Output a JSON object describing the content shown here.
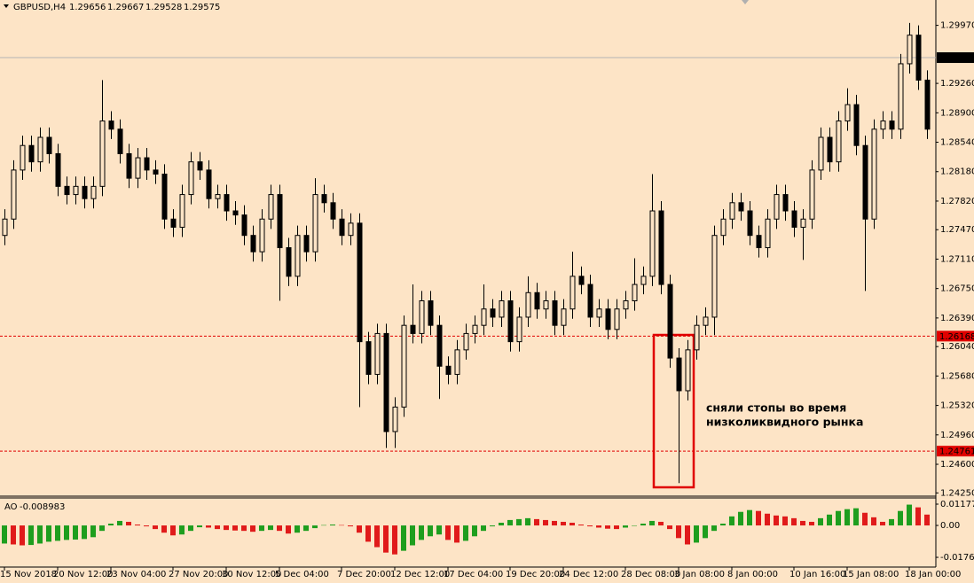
{
  "chart_data": {
    "type": "candlestick",
    "symbol": "GBPUSD,H4",
    "quote": [
      1.29656,
      1.29667,
      1.29528,
      1.29575
    ],
    "background": "#fde4c6",
    "up_fill": "#fde4c6",
    "down_fill": "#000000",
    "grid": false,
    "ylim": [
      1.2421,
      1.3028
    ],
    "yticks": [
      {
        "value": 1.2997,
        "label": "1.29970"
      },
      {
        "value": 1.2926,
        "label": "1.29260"
      },
      {
        "value": 1.289,
        "label": "1.28900"
      },
      {
        "value": 1.2854,
        "label": "1.28540"
      },
      {
        "value": 1.2818,
        "label": "1.28180"
      },
      {
        "value": 1.2782,
        "label": "1.27820"
      },
      {
        "value": 1.2747,
        "label": "1.27470"
      },
      {
        "value": 1.2711,
        "label": "1.27110"
      },
      {
        "value": 1.2675,
        "label": "1.26750"
      },
      {
        "value": 1.2639,
        "label": "1.26390"
      },
      {
        "value": 1.2604,
        "label": "1.26040"
      },
      {
        "value": 1.2568,
        "label": "1.25680"
      },
      {
        "value": 1.2532,
        "label": "1.25320"
      },
      {
        "value": 1.2496,
        "label": "1.24960"
      },
      {
        "value": 1.246,
        "label": "1.24600"
      },
      {
        "value": 1.2425,
        "label": "1.24250"
      }
    ],
    "xlim": [
      -0.5,
      105
    ],
    "xticks": [
      {
        "value": 0,
        "label": "15 Nov 2018"
      },
      {
        "value": 6,
        "label": "20 Nov 12:00"
      },
      {
        "value": 12,
        "label": "23 Nov 04:00"
      },
      {
        "value": 19,
        "label": "27 Nov 20:00"
      },
      {
        "value": 25,
        "label": "30 Nov 12:00"
      },
      {
        "value": 31,
        "label": "5 Dec 04:00"
      },
      {
        "value": 38,
        "label": "7 Dec 20:00"
      },
      {
        "value": 44,
        "label": "12 Dec 12:00"
      },
      {
        "value": 50,
        "label": "17 Dec 04:00"
      },
      {
        "value": 57,
        "label": "19 Dec 20:00"
      },
      {
        "value": 63,
        "label": "24 Dec 12:00"
      },
      {
        "value": 70,
        "label": "28 Dec 08:00"
      },
      {
        "value": 76,
        "label": "3 Jan 08:00"
      },
      {
        "value": 82,
        "label": "8 Jan 00:00"
      },
      {
        "value": 89,
        "label": "10 Jan 16:00"
      },
      {
        "value": 95,
        "label": "15 Jan 08:00"
      },
      {
        "value": 102,
        "label": "18 Jan 00:00"
      }
    ],
    "open": [
      1.274,
      1.276,
      1.282,
      1.285,
      1.283,
      1.286,
      1.284,
      1.28,
      1.279,
      1.28,
      1.2785,
      1.28,
      1.288,
      1.287,
      1.284,
      1.281,
      1.2835,
      1.282,
      1.2815,
      1.276,
      1.275,
      1.279,
      1.283,
      1.282,
      1.2785,
      1.279,
      1.277,
      1.2765,
      1.274,
      1.272,
      1.276,
      1.279,
      1.2725,
      1.269,
      1.274,
      1.272,
      1.279,
      1.278,
      1.276,
      1.274,
      1.2755,
      1.261,
      1.257,
      1.262,
      1.25,
      1.253,
      1.263,
      1.262,
      1.266,
      1.263,
      1.258,
      1.257,
      1.26,
      1.262,
      1.263,
      1.265,
      1.264,
      1.266,
      1.261,
      1.264,
      1.267,
      1.265,
      1.266,
      1.263,
      1.265,
      1.269,
      1.268,
      1.264,
      1.265,
      1.2625,
      1.265,
      1.266,
      1.268,
      1.269,
      1.277,
      1.268,
      1.259,
      1.255,
      1.26,
      1.263,
      1.264,
      1.274,
      1.276,
      1.278,
      1.277,
      1.274,
      1.2725,
      1.276,
      1.279,
      1.277,
      1.275,
      1.276,
      1.282,
      1.286,
      1.283,
      1.288,
      1.29,
      1.285,
      1.276,
      1.287,
      1.288,
      1.287,
      1.295,
      1.2985,
      1.293
    ],
    "high": [
      1.2772,
      1.2832,
      1.2862,
      1.2862,
      1.2872,
      1.2872,
      1.2852,
      1.2812,
      1.2812,
      1.2812,
      1.2812,
      1.293,
      1.2892,
      1.2882,
      1.2852,
      1.2847,
      1.2847,
      1.2832,
      1.2827,
      1.2772,
      1.2802,
      1.2842,
      1.2842,
      1.2832,
      1.2802,
      1.2802,
      1.2782,
      1.2777,
      1.2752,
      1.2772,
      1.2802,
      1.2802,
      1.2737,
      1.2752,
      1.2752,
      1.281,
      1.2802,
      1.2792,
      1.2772,
      1.2767,
      1.2767,
      1.2622,
      1.2632,
      1.2632,
      1.2542,
      1.2642,
      1.268,
      1.2672,
      1.2672,
      1.2642,
      1.2592,
      1.2612,
      1.2632,
      1.2642,
      1.268,
      1.2662,
      1.2672,
      1.2672,
      1.2652,
      1.269,
      1.2682,
      1.2672,
      1.2672,
      1.2662,
      1.272,
      1.2702,
      1.2692,
      1.2662,
      1.2662,
      1.2662,
      1.2672,
      1.2712,
      1.2702,
      1.2815,
      1.2782,
      1.2692,
      1.2602,
      1.2612,
      1.2642,
      1.2652,
      1.2752,
      1.2772,
      1.2792,
      1.2792,
      1.2782,
      1.2752,
      1.2772,
      1.2802,
      1.2802,
      1.2782,
      1.2772,
      1.2832,
      1.2872,
      1.2872,
      1.2892,
      1.292,
      1.2912,
      1.2862,
      1.2882,
      1.2892,
      1.2892,
      1.2962,
      1.3,
      1.2997,
      1.2942
    ],
    "low": [
      1.2728,
      1.2748,
      1.2808,
      1.2818,
      1.2818,
      1.2828,
      1.2788,
      1.2778,
      1.2778,
      1.2773,
      1.2773,
      1.2788,
      1.2858,
      1.2828,
      1.2798,
      1.2798,
      1.2808,
      1.2803,
      1.2748,
      1.2738,
      1.2738,
      1.2778,
      1.2808,
      1.2773,
      1.2773,
      1.2758,
      1.2753,
      1.2728,
      1.2708,
      1.2708,
      1.2748,
      1.266,
      1.2678,
      1.2678,
      1.2708,
      1.2708,
      1.2768,
      1.2748,
      1.2728,
      1.2728,
      1.253,
      1.2558,
      1.2558,
      1.248,
      1.248,
      1.2518,
      1.2608,
      1.2608,
      1.2618,
      1.254,
      1.2558,
      1.2558,
      1.2588,
      1.2608,
      1.2618,
      1.2628,
      1.2628,
      1.2598,
      1.2598,
      1.2628,
      1.2638,
      1.2638,
      1.2618,
      1.2618,
      1.2638,
      1.2668,
      1.2628,
      1.2628,
      1.2613,
      1.2613,
      1.2638,
      1.2648,
      1.2668,
      1.2678,
      1.2668,
      1.2578,
      1.2437,
      1.2538,
      1.2588,
      1.2618,
      1.2618,
      1.2728,
      1.2748,
      1.2758,
      1.2728,
      1.2713,
      1.2713,
      1.2748,
      1.2758,
      1.2738,
      1.271,
      1.2748,
      1.2808,
      1.2818,
      1.2818,
      1.2868,
      1.2838,
      1.2672,
      1.2748,
      1.2858,
      1.2858,
      1.2858,
      1.2938,
      1.2918,
      1.2858
    ],
    "close": [
      1.276,
      1.282,
      1.285,
      1.283,
      1.286,
      1.284,
      1.28,
      1.279,
      1.28,
      1.2785,
      1.28,
      1.288,
      1.287,
      1.284,
      1.281,
      1.2835,
      1.282,
      1.2815,
      1.276,
      1.275,
      1.279,
      1.283,
      1.282,
      1.2785,
      1.279,
      1.277,
      1.2765,
      1.274,
      1.272,
      1.276,
      1.279,
      1.2725,
      1.269,
      1.274,
      1.272,
      1.279,
      1.278,
      1.276,
      1.274,
      1.2755,
      1.261,
      1.257,
      1.262,
      1.25,
      1.253,
      1.263,
      1.262,
      1.266,
      1.263,
      1.258,
      1.257,
      1.26,
      1.262,
      1.263,
      1.265,
      1.264,
      1.266,
      1.261,
      1.264,
      1.267,
      1.265,
      1.266,
      1.263,
      1.265,
      1.269,
      1.268,
      1.264,
      1.265,
      1.2625,
      1.265,
      1.266,
      1.268,
      1.269,
      1.277,
      1.268,
      1.259,
      1.255,
      1.26,
      1.263,
      1.264,
      1.274,
      1.276,
      1.278,
      1.277,
      1.274,
      1.2725,
      1.276,
      1.279,
      1.277,
      1.275,
      1.276,
      1.282,
      1.286,
      1.283,
      1.288,
      1.29,
      1.285,
      1.276,
      1.287,
      1.288,
      1.287,
      1.295,
      1.2985,
      1.293,
      1.287
    ],
    "current_line_color": "#b4b4b4",
    "levels": [
      {
        "value": 1.26168,
        "color": "#e00000"
      },
      {
        "value": 1.24761,
        "color": "#e00000"
      }
    ],
    "annotation": [
      "сняли стопы во время",
      "низколиквидного рынка"
    ],
    "annotation_color": "#4040d0",
    "indicator": {
      "type": "histogram",
      "name": "AO",
      "value": -0.008983,
      "up_color": "#1e9e1e",
      "down_color": "#e01a1a",
      "ylim": [
        -0.023,
        0.0152
      ],
      "yticks": [
        0.01177,
        {
          "value": 0,
          "label": "0.00"
        },
        -0.01763
      ],
      "values": [
        -0.01,
        -0.0105,
        -0.011,
        -0.0108,
        -0.01,
        -0.009,
        -0.0085,
        -0.008,
        -0.0078,
        -0.0075,
        -0.0065,
        -0.003,
        0.001,
        0.0025,
        0.002,
        0.0005,
        -0.0005,
        -0.002,
        -0.004,
        -0.0055,
        -0.005,
        -0.003,
        -0.001,
        -0.0012,
        -0.002,
        -0.0025,
        -0.0028,
        -0.003,
        -0.0035,
        -0.003,
        -0.0025,
        -0.003,
        -0.0045,
        -0.004,
        -0.003,
        -0.0015,
        0.0002,
        0.0005,
        0.0002,
        -0.0005,
        -0.004,
        -0.009,
        -0.012,
        -0.015,
        -0.016,
        -0.014,
        -0.011,
        -0.008,
        -0.006,
        -0.005,
        -0.008,
        -0.0095,
        -0.0085,
        -0.006,
        -0.003,
        -0.0005,
        0.0015,
        0.003,
        0.0035,
        0.004,
        0.0035,
        0.003,
        0.0025,
        0.002,
        0.0015,
        0.0005,
        -0.0005,
        -0.0012,
        -0.0018,
        -0.002,
        -0.0012,
        -0.0002,
        0.001,
        0.0025,
        0.002,
        -0.002,
        -0.007,
        -0.0105,
        -0.0095,
        -0.007,
        -0.003,
        0.001,
        0.005,
        0.0075,
        0.0085,
        0.008,
        0.0065,
        0.0055,
        0.005,
        0.004,
        0.0025,
        0.002,
        0.004,
        0.006,
        0.008,
        0.009,
        0.0095,
        0.007,
        0.0045,
        0.002,
        0.0035,
        0.008,
        0.0115,
        0.01,
        0.006
      ]
    }
  }
}
